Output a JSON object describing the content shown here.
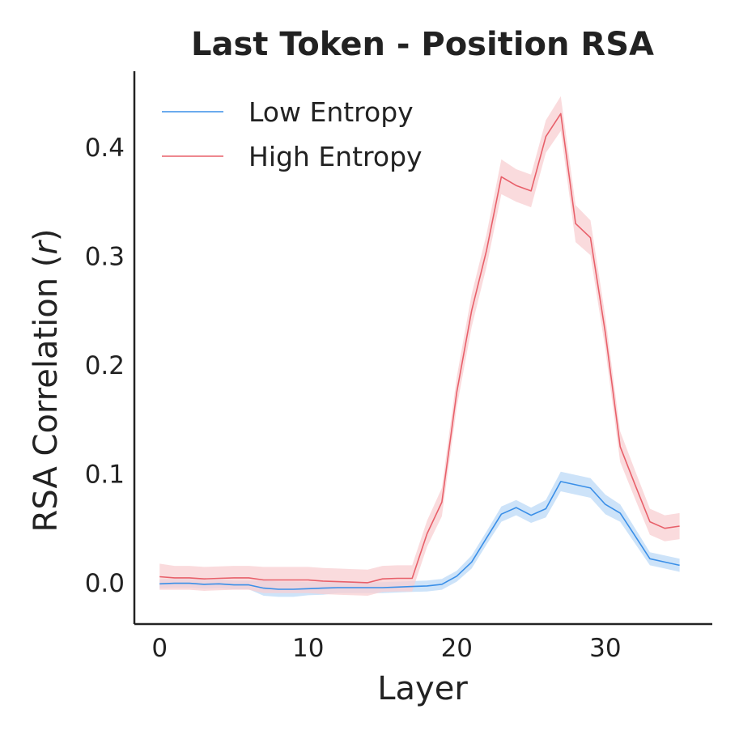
{
  "chart_data": {
    "type": "line",
    "title": "Last Token - Position RSA",
    "xlabel": "Layer",
    "ylabel_main": "RSA Correlation (",
    "ylabel_var": "r",
    "ylabel_close": ")",
    "xlim": [
      -1.7,
      37.2
    ],
    "ylim": [
      -0.038,
      0.47
    ],
    "xticks": [
      0,
      10,
      20,
      30
    ],
    "yticks": [
      0.0,
      0.1,
      0.2,
      0.3,
      0.4
    ],
    "ytick_labels": [
      "0.0",
      "0.1",
      "0.2",
      "0.3",
      "0.4"
    ],
    "xtick_labels": [
      "0",
      "10",
      "20",
      "30"
    ],
    "legend_position": "top-left",
    "grid": false,
    "x": [
      0,
      1,
      2,
      3,
      4,
      5,
      6,
      7,
      8,
      9,
      10,
      11,
      12,
      13,
      14,
      15,
      16,
      17,
      18,
      19,
      20,
      21,
      22,
      23,
      24,
      25,
      26,
      27,
      28,
      29,
      30,
      31,
      32,
      33,
      34,
      35
    ],
    "series": [
      {
        "name": "Low Entropy",
        "color": "#3a8fe8",
        "band_color": "#bcd9f7",
        "values": [
          -0.001,
          -0.0005,
          -0.0005,
          -0.0015,
          -0.001,
          -0.002,
          -0.002,
          -0.005,
          -0.006,
          -0.006,
          -0.0055,
          -0.005,
          -0.0045,
          -0.0045,
          -0.0045,
          -0.0045,
          -0.004,
          -0.0035,
          -0.003,
          -0.0015,
          0.006,
          0.019,
          0.041,
          0.063,
          0.069,
          0.062,
          0.068,
          0.093,
          0.09,
          0.087,
          0.072,
          0.064,
          0.043,
          0.022,
          0.019,
          0.016
        ],
        "band": [
          0.004,
          0.004,
          0.004,
          0.004,
          0.004,
          0.004,
          0.004,
          0.007,
          0.007,
          0.007,
          0.006,
          0.006,
          0.005,
          0.005,
          0.005,
          0.005,
          0.005,
          0.005,
          0.005,
          0.005,
          0.005,
          0.006,
          0.006,
          0.007,
          0.007,
          0.007,
          0.008,
          0.009,
          0.009,
          0.009,
          0.009,
          0.008,
          0.007,
          0.006,
          0.006,
          0.006
        ]
      },
      {
        "name": "High Entropy",
        "color": "#e8606a",
        "band_color": "#f8cfd2",
        "values": [
          0.0055,
          0.0045,
          0.0045,
          0.0035,
          0.004,
          0.0045,
          0.0045,
          0.0025,
          0.0025,
          0.0025,
          0.0025,
          0.0015,
          0.001,
          0.0005,
          0.0,
          0.0035,
          0.004,
          0.004,
          0.045,
          0.074,
          0.175,
          0.25,
          0.305,
          0.373,
          0.365,
          0.36,
          0.41,
          0.431,
          0.33,
          0.317,
          0.23,
          0.125,
          0.09,
          0.056,
          0.05,
          0.052
        ],
        "band": [
          0.012,
          0.011,
          0.011,
          0.011,
          0.011,
          0.011,
          0.011,
          0.012,
          0.012,
          0.012,
          0.012,
          0.012,
          0.012,
          0.012,
          0.012,
          0.012,
          0.012,
          0.012,
          0.012,
          0.013,
          0.014,
          0.015,
          0.015,
          0.016,
          0.015,
          0.015,
          0.015,
          0.016,
          0.017,
          0.016,
          0.015,
          0.014,
          0.013,
          0.012,
          0.012,
          0.012
        ]
      }
    ]
  }
}
